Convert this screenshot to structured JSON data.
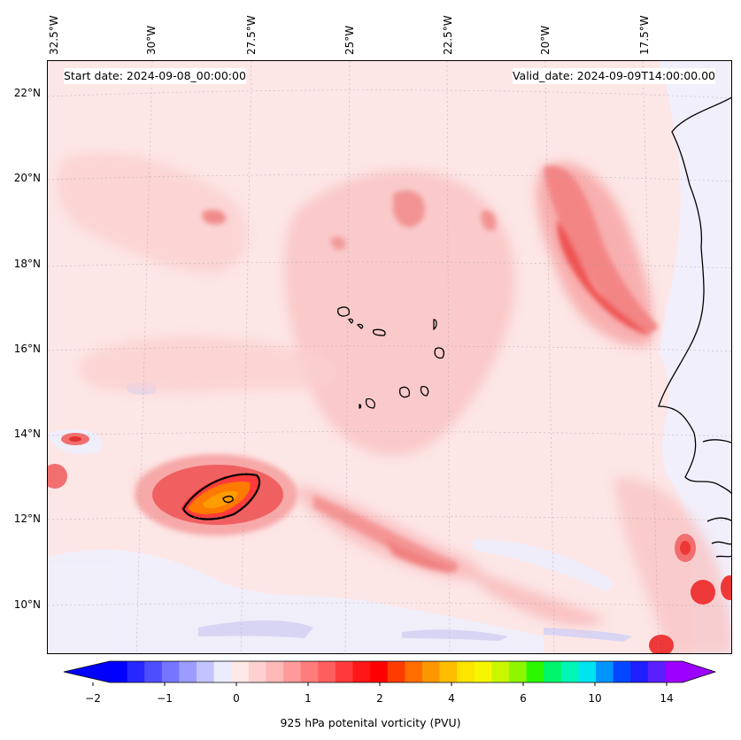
{
  "map": {
    "start_date": "Start date: 2024-09-08_00:00:00",
    "valid_date": "Valid_date: 2024-09-09T14:00:00.00",
    "longitude_labels": [
      "32.5°W",
      "30°W",
      "27.5°W",
      "25°W",
      "22.5°W",
      "20°W",
      "17.5°W"
    ],
    "latitude_labels": [
      "22°N",
      "20°N",
      "18°N",
      "16°N",
      "14°N",
      "12°N",
      "10°N"
    ],
    "field": "925 hPa potential vorticity",
    "colors": {
      "background_low": "#fde2e2",
      "pink_light": "#fbc9c9",
      "pink_mid": "#f7a7a7",
      "red_mid": "#f27a7a",
      "red_strong": "#ee4b4b",
      "orange": "#ff7b00",
      "yellow_orange": "#ff9a00",
      "blue_light": "#d8d8f7",
      "coast": "#000000"
    }
  },
  "colorbar": {
    "label": "925 hPa potenital vorticity (PVU)",
    "tick_labels": [
      "−2",
      "−1",
      "0",
      "1",
      "2",
      "4",
      "6",
      "10",
      "14"
    ],
    "colors": [
      "#0000ff",
      "#2727ff",
      "#4e4eff",
      "#7575ff",
      "#9c9cff",
      "#c3c3ff",
      "#ececff",
      "#ffe8e8",
      "#ffd0d0",
      "#ffb8b8",
      "#ff9a9a",
      "#ff7c7c",
      "#ff5e5e",
      "#ff3a3a",
      "#ff1717",
      "#ff0000",
      "#ff3c00",
      "#ff6c00",
      "#ff9700",
      "#ffbd00",
      "#ffe400",
      "#f6f600",
      "#c8f700",
      "#8ef700",
      "#2bf700",
      "#00f66a",
      "#00f6b5",
      "#00e4ef",
      "#0094ff",
      "#0047ff",
      "#1f1fff",
      "#5a1fff",
      "#9c00ff"
    ]
  }
}
